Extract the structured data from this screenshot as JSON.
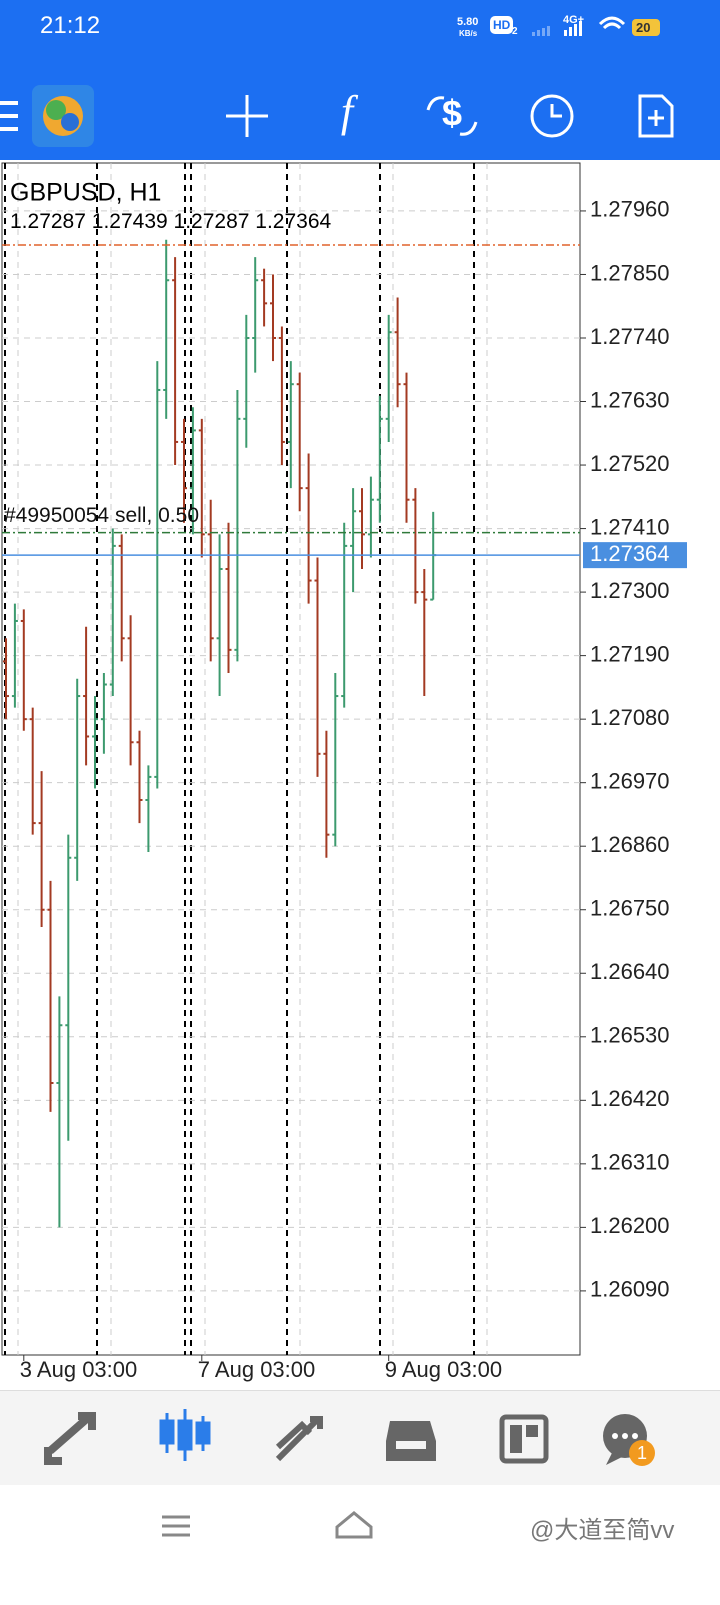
{
  "status_bar": {
    "time": "21:12",
    "speed": "5.80",
    "speed_unit": "KB/s",
    "hd": "HD",
    "sim": "2",
    "network": "4G+",
    "battery": "20"
  },
  "chart_data": {
    "type": "ohlc",
    "symbol": "GBPUSD, H1",
    "open": [
      1.2718,
      1.2712,
      1.2725,
      1.2708,
      1.269,
      1.2675,
      1.2645,
      1.2655,
      1.2684,
      1.2712,
      1.2705,
      1.2708,
      1.2714,
      1.2738,
      1.2722,
      1.2704,
      1.2694,
      1.2698,
      1.2765,
      1.2784,
      1.2756,
      1.2748,
      1.2758,
      1.274,
      1.2722,
      1.2734,
      1.272,
      1.276,
      1.2774,
      1.2784,
      1.278,
      1.2774,
      1.2756,
      1.2766,
      1.2748,
      1.2732,
      1.2702,
      1.2688,
      1.2712,
      1.2738,
      1.2744,
      1.274,
      1.2746,
      1.276,
      1.2775,
      1.2766,
      1.2746,
      1.273,
      1.27287
    ],
    "high": [
      1.2722,
      1.2728,
      1.2727,
      1.271,
      1.2699,
      1.268,
      1.266,
      1.2688,
      1.2715,
      1.2724,
      1.2712,
      1.2716,
      1.2741,
      1.274,
      1.2726,
      1.2706,
      1.27,
      1.277,
      1.2791,
      1.2788,
      1.276,
      1.2762,
      1.276,
      1.2746,
      1.274,
      1.2742,
      1.2765,
      1.2778,
      1.2788,
      1.2786,
      1.2785,
      1.2776,
      1.277,
      1.2768,
      1.2754,
      1.2736,
      1.2706,
      1.2716,
      1.2742,
      1.2748,
      1.2748,
      1.275,
      1.2764,
      1.2778,
      1.2781,
      1.2768,
      1.2748,
      1.2734,
      1.27439
    ],
    "low": [
      1.2708,
      1.271,
      1.2706,
      1.2688,
      1.2672,
      1.264,
      1.262,
      1.2635,
      1.268,
      1.27,
      1.2696,
      1.2702,
      1.2712,
      1.2718,
      1.27,
      1.269,
      1.2685,
      1.2696,
      1.276,
      1.2752,
      1.2742,
      1.274,
      1.2736,
      1.2718,
      1.2712,
      1.2716,
      1.2718,
      1.2755,
      1.2768,
      1.2776,
      1.277,
      1.2752,
      1.2748,
      1.2744,
      1.2728,
      1.2698,
      1.2684,
      1.2686,
      1.271,
      1.273,
      1.2734,
      1.2736,
      1.2742,
      1.2756,
      1.2762,
      1.2742,
      1.2728,
      1.2712,
      1.27287
    ],
    "close": [
      1.2712,
      1.2725,
      1.2708,
      1.269,
      1.2675,
      1.2645,
      1.2655,
      1.2684,
      1.2712,
      1.2705,
      1.2708,
      1.2714,
      1.2738,
      1.2722,
      1.2704,
      1.2694,
      1.2698,
      1.2765,
      1.2784,
      1.2756,
      1.2748,
      1.2758,
      1.274,
      1.2722,
      1.2734,
      1.272,
      1.276,
      1.2774,
      1.2784,
      1.278,
      1.2774,
      1.2756,
      1.2766,
      1.2748,
      1.2732,
      1.2702,
      1.2688,
      1.2712,
      1.2738,
      1.2744,
      1.274,
      1.2746,
      1.276,
      1.2775,
      1.2766,
      1.2746,
      1.273,
      1.27287,
      1.27364
    ],
    "categories": [
      null,
      null,
      "3 Aug 03:00",
      null,
      null,
      null,
      null,
      null,
      null,
      null,
      null,
      null,
      null,
      null,
      null,
      null,
      null,
      null,
      null,
      null,
      null,
      null,
      "7 Aug 03:00",
      null,
      null,
      null,
      null,
      null,
      null,
      null,
      null,
      null,
      null,
      null,
      null,
      null,
      null,
      null,
      null,
      null,
      null,
      null,
      null,
      "9 Aug 03:00",
      null,
      null,
      null,
      null,
      null
    ],
    "up_color": "#3c9a6e",
    "down_color": "#a33a22",
    "current_price_color": "#4a8fe0",
    "ylim": [
      1.25979,
      1.28043
    ],
    "yticks": [
      {
        "value": 1.2796,
        "label": "1.27960"
      },
      {
        "value": 1.2785,
        "label": "1.27850"
      },
      {
        "value": 1.2774,
        "label": "1.27740"
      },
      {
        "value": 1.2763,
        "label": "1.27630"
      },
      {
        "value": 1.2752,
        "label": "1.27520"
      },
      {
        "value": 1.2741,
        "label": "1.27410"
      },
      {
        "value": 1.273,
        "label": "1.27300"
      },
      {
        "value": 1.2719,
        "label": "1.27190"
      },
      {
        "value": 1.2708,
        "label": "1.27080"
      },
      {
        "value": 1.2697,
        "label": "1.26970"
      },
      {
        "value": 1.2686,
        "label": "1.26860"
      },
      {
        "value": 1.2675,
        "label": "1.26750"
      },
      {
        "value": 1.2664,
        "label": "1.26640"
      },
      {
        "value": 1.2653,
        "label": "1.26530"
      },
      {
        "value": 1.2642,
        "label": "1.26420"
      },
      {
        "value": 1.2631,
        "label": "1.26310"
      },
      {
        "value": 1.262,
        "label": "1.26200"
      },
      {
        "value": 1.2609,
        "label": "1.26090"
      }
    ],
    "grid": true,
    "order_lines": [
      {
        "price": 1.27901,
        "color": "#e0622c"
      },
      {
        "price": 1.27403,
        "color": "#2f7a3a",
        "label": "#49950054 sell, 0.50"
      }
    ]
  },
  "bottom_nav": {
    "badge": "1"
  },
  "watermark": "@大道至简vv"
}
